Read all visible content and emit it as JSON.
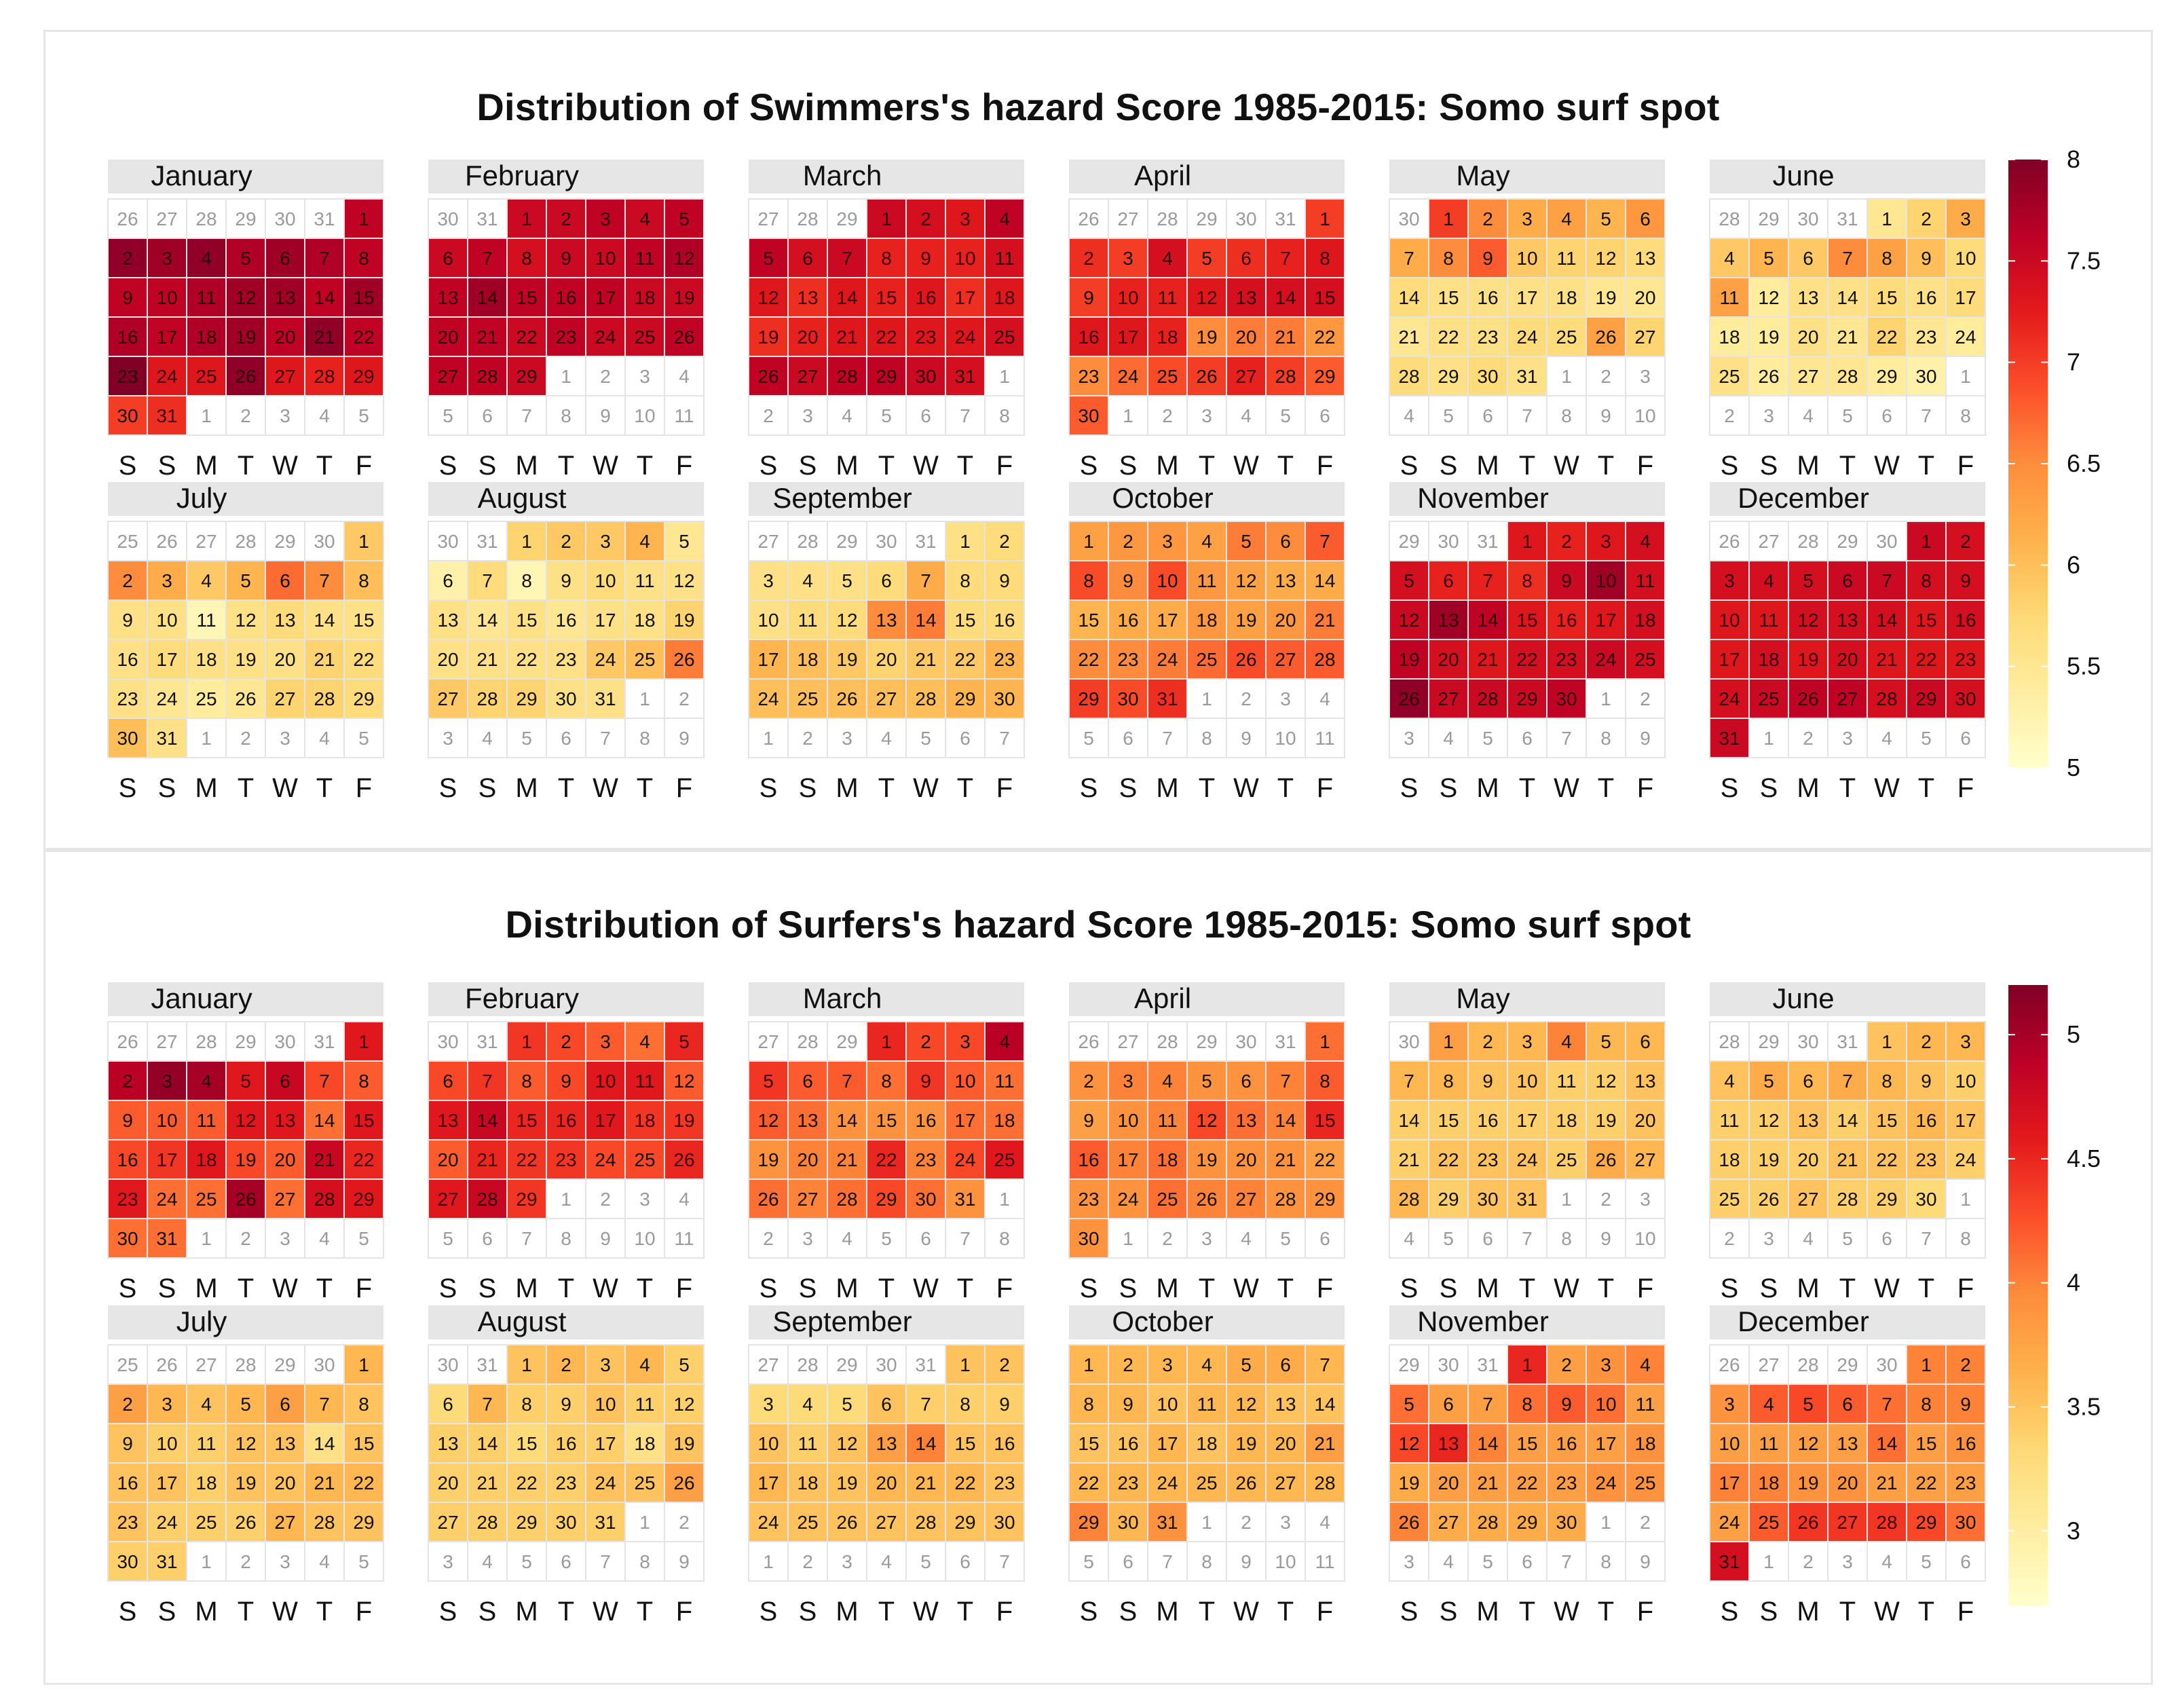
{
  "colors": {
    "scale": [
      "#FFFFCC",
      "#FFEDA0",
      "#FED976",
      "#FEB24C",
      "#FD8D3C",
      "#FC4E2A",
      "#E31A1C",
      "#BD0026",
      "#800026"
    ],
    "header_bg": "#e6e6e6",
    "out_of_month_text": "#9a9a9a"
  },
  "weekday_labels": [
    "S",
    "S",
    "M",
    "T",
    "W",
    "T",
    "F"
  ],
  "chart_data": [
    {
      "type": "heatmap",
      "title": "Distribution of Swimmers's hazard Score 1985-2015: Somo surf spot",
      "legend": {
        "position": "right",
        "min": 5,
        "max": 8,
        "ticks": [
          "8",
          "7.5",
          "7",
          "6.5",
          "6",
          "5.5",
          "5"
        ]
      },
      "months": [
        {
          "name": "January",
          "offset": 6,
          "days": 31,
          "prev_days": 31,
          "values": [
            7.6,
            7.9,
            7.8,
            7.9,
            7.7,
            7.8,
            7.7,
            7.6,
            7.6,
            7.6,
            7.7,
            7.8,
            7.8,
            7.6,
            7.8,
            7.7,
            7.6,
            7.7,
            7.8,
            7.6,
            7.9,
            7.6,
            8.0,
            7.3,
            7.3,
            7.9,
            7.3,
            7.2,
            7.3,
            7.0,
            7.1
          ]
        },
        {
          "name": "February",
          "offset": 2,
          "days": 29,
          "prev_days": 31,
          "values": [
            7.5,
            7.5,
            7.6,
            7.5,
            7.6,
            7.5,
            7.6,
            7.4,
            7.5,
            7.5,
            7.6,
            7.7,
            7.6,
            7.8,
            7.6,
            7.6,
            7.6,
            7.5,
            7.5,
            7.6,
            7.6,
            7.5,
            7.6,
            7.5,
            7.5,
            7.6,
            7.6,
            7.6,
            7.5
          ]
        },
        {
          "name": "March",
          "offset": 3,
          "days": 31,
          "prev_days": 29,
          "values": [
            7.5,
            7.4,
            7.3,
            7.6,
            7.6,
            7.4,
            7.5,
            7.2,
            7.2,
            7.2,
            7.4,
            7.3,
            7.1,
            7.3,
            7.2,
            7.3,
            7.1,
            7.3,
            7.1,
            7.2,
            7.3,
            7.3,
            7.3,
            7.3,
            7.4,
            7.6,
            7.5,
            7.6,
            7.6,
            7.5,
            7.4
          ]
        },
        {
          "name": "April",
          "offset": 6,
          "days": 30,
          "prev_days": 31,
          "values": [
            7.0,
            7.1,
            7.0,
            7.4,
            7.0,
            7.1,
            7.2,
            7.3,
            7.0,
            7.2,
            7.2,
            7.3,
            7.4,
            7.4,
            7.4,
            7.3,
            7.3,
            7.2,
            6.5,
            6.6,
            6.6,
            6.4,
            6.5,
            6.7,
            6.9,
            7.0,
            7.2,
            7.0,
            6.8,
            6.8
          ]
        },
        {
          "name": "May",
          "offset": 1,
          "days": 31,
          "prev_days": 30,
          "values": [
            7.0,
            6.5,
            6.2,
            6.3,
            6.1,
            6.4,
            6.2,
            6.5,
            6.8,
            5.9,
            5.8,
            5.8,
            5.7,
            5.7,
            5.6,
            5.6,
            5.6,
            5.6,
            5.5,
            5.5,
            5.5,
            5.6,
            5.6,
            5.7,
            5.7,
            6.3,
            5.8,
            5.7,
            5.6,
            5.7,
            5.6
          ]
        },
        {
          "name": "June",
          "offset": 4,
          "days": 30,
          "prev_days": 31,
          "values": [
            5.5,
            5.8,
            6.2,
            5.9,
            6.1,
            5.9,
            6.5,
            6.3,
            6.0,
            5.7,
            6.3,
            5.4,
            5.6,
            5.6,
            5.7,
            5.6,
            5.7,
            5.4,
            5.4,
            5.6,
            5.5,
            5.8,
            5.5,
            5.4,
            5.6,
            5.4,
            5.5,
            5.5,
            5.4,
            5.3
          ]
        },
        {
          "name": "July",
          "offset": 6,
          "days": 31,
          "prev_days": 30,
          "values": [
            5.9,
            6.5,
            6.2,
            5.9,
            6.1,
            6.7,
            6.5,
            6.0,
            5.6,
            5.6,
            5.2,
            5.6,
            5.7,
            5.6,
            5.6,
            5.6,
            5.7,
            5.6,
            5.6,
            5.6,
            5.8,
            5.7,
            5.6,
            5.5,
            5.4,
            5.5,
            5.8,
            5.8,
            5.7,
            6.0,
            5.6
          ]
        },
        {
          "name": "August",
          "offset": 2,
          "days": 31,
          "prev_days": 31,
          "values": [
            5.8,
            5.9,
            5.9,
            6.1,
            5.5,
            5.3,
            5.7,
            5.2,
            5.6,
            5.7,
            5.6,
            5.6,
            5.6,
            5.5,
            5.6,
            5.5,
            5.6,
            5.6,
            5.8,
            5.6,
            5.6,
            5.6,
            5.6,
            5.9,
            6.0,
            6.6,
            5.9,
            5.8,
            5.8,
            5.6,
            5.6
          ]
        },
        {
          "name": "September",
          "offset": 5,
          "days": 30,
          "prev_days": 31,
          "values": [
            5.6,
            5.7,
            5.6,
            5.6,
            5.6,
            5.7,
            6.2,
            5.7,
            5.7,
            5.6,
            5.7,
            5.7,
            6.5,
            6.6,
            5.7,
            5.7,
            6.1,
            6.0,
            5.9,
            5.8,
            5.9,
            5.9,
            6.1,
            6.0,
            6.0,
            6.0,
            6.0,
            6.0,
            6.1,
            6.1
          ]
        },
        {
          "name": "October",
          "offset": 0,
          "days": 31,
          "prev_days": 30,
          "values": [
            6.3,
            6.4,
            6.4,
            6.3,
            6.6,
            6.5,
            6.8,
            6.9,
            6.5,
            6.9,
            6.4,
            6.3,
            6.2,
            6.2,
            6.1,
            6.2,
            6.2,
            6.4,
            6.3,
            6.4,
            6.6,
            6.5,
            6.5,
            6.6,
            6.7,
            6.9,
            6.8,
            6.8,
            7.0,
            6.9,
            7.1
          ]
        },
        {
          "name": "November",
          "offset": 3,
          "days": 30,
          "prev_days": 31,
          "values": [
            7.3,
            7.2,
            7.3,
            7.4,
            7.4,
            7.2,
            7.2,
            7.1,
            7.5,
            7.8,
            7.4,
            7.5,
            7.8,
            7.6,
            7.3,
            7.2,
            7.3,
            7.4,
            7.6,
            7.4,
            7.3,
            7.4,
            7.4,
            7.5,
            7.4,
            7.9,
            7.5,
            7.5,
            7.5,
            7.6
          ]
        },
        {
          "name": "December",
          "offset": 5,
          "days": 31,
          "prev_days": 30,
          "values": [
            7.5,
            7.4,
            7.4,
            7.4,
            7.4,
            7.5,
            7.5,
            7.4,
            7.4,
            7.3,
            7.3,
            7.4,
            7.4,
            7.4,
            7.3,
            7.4,
            7.3,
            7.4,
            7.3,
            7.4,
            7.3,
            7.3,
            7.3,
            7.4,
            7.5,
            7.6,
            7.6,
            7.4,
            7.5,
            7.4,
            7.5
          ]
        }
      ]
    },
    {
      "type": "heatmap",
      "title": "Distribution of Surfers's hazard Score 1985-2015: Somo surf spot",
      "legend": {
        "position": "right",
        "min": 2.7,
        "max": 5.2,
        "ticks": [
          "5",
          "4.5",
          "4",
          "3.5",
          "3"
        ]
      },
      "months": [
        {
          "name": "January",
          "offset": 6,
          "days": 31,
          "prev_days": 31,
          "values": [
            4.6,
            4.9,
            5.1,
            5.0,
            4.6,
            4.8,
            4.3,
            4.2,
            4.2,
            4.2,
            4.2,
            4.6,
            4.6,
            4.1,
            4.6,
            4.3,
            4.4,
            4.6,
            4.3,
            4.2,
            4.8,
            4.5,
            4.6,
            4.1,
            4.1,
            5.0,
            4.1,
            4.7,
            4.6,
            4.1,
            4.1
          ]
        },
        {
          "name": "February",
          "offset": 2,
          "days": 29,
          "prev_days": 31,
          "values": [
            4.4,
            4.3,
            4.2,
            4.1,
            4.5,
            4.3,
            4.4,
            4.2,
            4.3,
            4.6,
            4.6,
            4.2,
            4.6,
            4.8,
            4.5,
            4.5,
            4.6,
            4.4,
            4.4,
            4.2,
            4.5,
            4.4,
            4.4,
            4.3,
            4.3,
            4.5,
            4.6,
            4.8,
            4.4
          ]
        },
        {
          "name": "March",
          "offset": 3,
          "days": 31,
          "prev_days": 29,
          "values": [
            4.5,
            4.3,
            4.3,
            4.9,
            4.4,
            4.2,
            4.2,
            4.1,
            4.4,
            4.2,
            4.1,
            4.2,
            4.1,
            3.9,
            3.9,
            3.9,
            4.1,
            4.1,
            3.9,
            4.0,
            4.0,
            4.5,
            4.0,
            4.3,
            4.6,
            4.1,
            4.0,
            4.1,
            4.3,
            4.1,
            3.9
          ]
        },
        {
          "name": "April",
          "offset": 6,
          "days": 30,
          "prev_days": 31,
          "values": [
            4.1,
            3.9,
            4.0,
            4.0,
            3.9,
            3.9,
            4.0,
            4.2,
            3.8,
            3.9,
            4.0,
            4.3,
            4.1,
            4.0,
            4.5,
            4.2,
            4.0,
            4.1,
            3.9,
            3.9,
            3.9,
            3.8,
            3.9,
            3.9,
            4.1,
            4.0,
            4.0,
            3.9,
            3.9,
            3.9
          ]
        },
        {
          "name": "May",
          "offset": 1,
          "days": 31,
          "prev_days": 30,
          "values": [
            3.8,
            3.6,
            3.6,
            4.0,
            3.6,
            3.6,
            3.6,
            3.6,
            3.5,
            3.5,
            3.4,
            3.4,
            3.5,
            3.4,
            3.4,
            3.4,
            3.4,
            3.4,
            3.4,
            3.5,
            3.4,
            3.5,
            3.5,
            3.5,
            3.4,
            3.7,
            3.6,
            3.6,
            3.4,
            3.5,
            3.5
          ]
        },
        {
          "name": "June",
          "offset": 4,
          "days": 30,
          "prev_days": 31,
          "values": [
            3.5,
            3.6,
            3.6,
            3.5,
            3.7,
            3.6,
            3.7,
            3.6,
            3.5,
            3.4,
            3.4,
            3.4,
            3.5,
            3.4,
            3.5,
            3.6,
            3.5,
            3.4,
            3.4,
            3.4,
            3.5,
            3.5,
            3.5,
            3.4,
            3.4,
            3.4,
            3.5,
            3.4,
            3.4,
            3.3
          ]
        },
        {
          "name": "July",
          "offset": 6,
          "days": 31,
          "prev_days": 30,
          "values": [
            3.6,
            3.8,
            3.6,
            3.5,
            3.6,
            3.8,
            3.6,
            3.5,
            3.5,
            3.4,
            3.4,
            3.5,
            3.5,
            3.2,
            3.5,
            3.5,
            3.5,
            3.4,
            3.5,
            3.5,
            3.6,
            3.6,
            3.5,
            3.4,
            3.4,
            3.4,
            3.6,
            3.5,
            3.5,
            3.4,
            3.4
          ]
        },
        {
          "name": "August",
          "offset": 2,
          "days": 31,
          "prev_days": 31,
          "values": [
            3.5,
            3.6,
            3.5,
            3.6,
            3.4,
            3.3,
            3.6,
            3.4,
            3.4,
            3.5,
            3.4,
            3.4,
            3.4,
            3.4,
            3.3,
            3.4,
            3.4,
            3.2,
            3.5,
            3.4,
            3.4,
            3.4,
            3.4,
            3.5,
            3.5,
            3.8,
            3.4,
            3.4,
            3.4,
            3.4,
            3.4
          ]
        },
        {
          "name": "September",
          "offset": 5,
          "days": 30,
          "prev_days": 31,
          "values": [
            3.5,
            3.5,
            3.3,
            3.3,
            3.3,
            3.5,
            3.4,
            3.4,
            3.4,
            3.5,
            3.4,
            3.5,
            3.8,
            4.0,
            3.5,
            3.5,
            3.6,
            3.5,
            3.5,
            3.6,
            3.6,
            3.6,
            3.5,
            3.5,
            3.5,
            3.5,
            3.5,
            3.5,
            3.5,
            3.5
          ]
        },
        {
          "name": "October",
          "offset": 0,
          "days": 31,
          "prev_days": 30,
          "values": [
            3.6,
            3.6,
            3.6,
            3.6,
            3.7,
            3.7,
            3.6,
            3.6,
            3.6,
            3.5,
            3.6,
            3.6,
            3.5,
            3.5,
            3.5,
            3.5,
            3.6,
            3.5,
            3.6,
            3.6,
            3.8,
            3.6,
            3.6,
            3.6,
            3.6,
            3.6,
            3.6,
            3.6,
            4.0,
            3.6,
            3.9
          ]
        },
        {
          "name": "November",
          "offset": 3,
          "days": 30,
          "prev_days": 31,
          "values": [
            4.5,
            3.8,
            3.9,
            4.0,
            4.1,
            3.8,
            3.8,
            4.1,
            4.2,
            4.1,
            3.8,
            4.3,
            4.5,
            4.0,
            3.8,
            3.8,
            3.8,
            3.9,
            3.7,
            3.8,
            3.8,
            3.8,
            3.8,
            3.9,
            3.9,
            4.0,
            3.7,
            3.7,
            3.7,
            3.7
          ]
        },
        {
          "name": "December",
          "offset": 5,
          "days": 31,
          "prev_days": 30,
          "values": [
            4.0,
            4.0,
            3.9,
            4.2,
            4.3,
            4.2,
            4.1,
            4.0,
            4.0,
            3.8,
            3.8,
            3.8,
            3.8,
            4.1,
            3.8,
            3.9,
            4.0,
            4.0,
            3.9,
            3.9,
            3.8,
            3.8,
            3.8,
            3.8,
            4.2,
            4.4,
            4.4,
            4.4,
            4.3,
            4.1,
            4.7
          ]
        }
      ]
    }
  ]
}
